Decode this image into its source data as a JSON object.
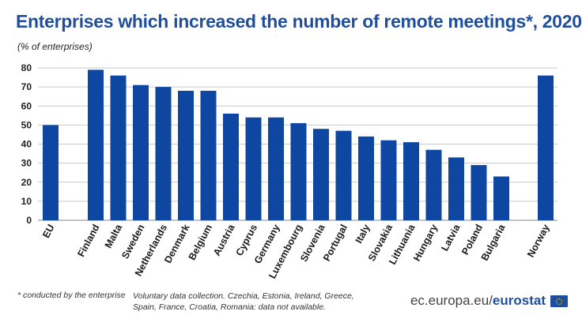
{
  "title": "Enterprises which increased the number of remote meetings*, 2020",
  "subtitle": "(% of enterprises)",
  "colors": {
    "title": "#1f4e9c",
    "bar": "#0e47a1",
    "grid": "#c9c9c9"
  },
  "chart_data": {
    "type": "bar",
    "title": "Enterprises which increased the number of remote meetings*, 2020",
    "ylabel": "(% of enterprises)",
    "xlabel": "",
    "ylim": [
      0,
      80
    ],
    "yticks": [
      0,
      10,
      20,
      30,
      40,
      50,
      60,
      70,
      80
    ],
    "yticks_labels": [
      "0",
      "10",
      "20",
      "30",
      "40",
      "50",
      "60",
      "70",
      "80"
    ],
    "grid": true,
    "categories": [
      "EU",
      "Finland",
      "Malta",
      "Sweden",
      "Netherlands",
      "Denmark",
      "Belgium",
      "Austria",
      "Cyprus",
      "Germany",
      "Luxembourg",
      "Slovenia",
      "Portugal",
      "Italy",
      "Slovakia",
      "Lithuania",
      "Hungary",
      "Latvia",
      "Poland",
      "Bulgaria",
      "Norway"
    ],
    "values": [
      50,
      79,
      76,
      71,
      70,
      68,
      68,
      56,
      54,
      54,
      51,
      48,
      47,
      44,
      42,
      41,
      37,
      33,
      29,
      23,
      76
    ]
  },
  "footnote": "* conducted by the enterprise",
  "note": "Voluntary data collection. Czechia, Estonia, Ireland, Greece, Spain, France, Croatia, Romania: data not available.",
  "source": {
    "domain": "ec.europa.eu/",
    "brand": "eurostat"
  },
  "flag_icon": "eu-flag-icon"
}
